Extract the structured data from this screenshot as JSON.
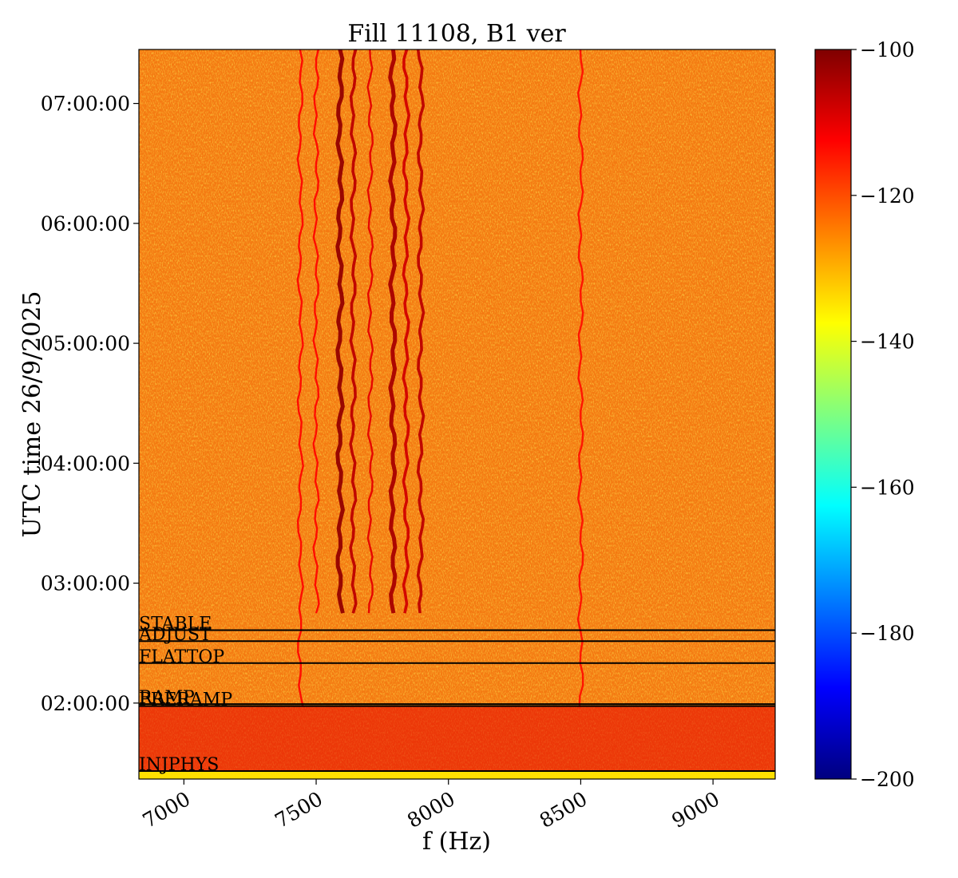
{
  "chart_data": {
    "type": "heatmap",
    "title": "Fill 11108, B1 ver",
    "xlabel": "f (Hz)",
    "ylabel": "UTC time 26/9/2025",
    "xlim": [
      6830,
      9235
    ],
    "ylim": [
      "01:22:00",
      "07:27:00"
    ],
    "x_ticks": [
      7000,
      7500,
      8000,
      8500,
      9000
    ],
    "x_tick_labels": [
      "7000",
      "7500",
      "8000",
      "8500",
      "9000"
    ],
    "y_ticks": [
      "02:00:00",
      "03:00:00",
      "04:00:00",
      "05:00:00",
      "06:00:00",
      "07:00:00"
    ],
    "colormap": "jet",
    "colorbar": {
      "range": [
        -200,
        -100
      ],
      "ticks": [
        -100,
        -120,
        -140,
        -160,
        -180,
        -200
      ],
      "tick_labels": [
        "−100",
        "−120",
        "−140",
        "−160",
        "−180",
        "−200"
      ]
    },
    "background_level_db": -123,
    "spectral_lines": [
      {
        "f_hz": 7590,
        "start": "02:45:00",
        "level_db": -102
      },
      {
        "f_hz": 7640,
        "start": "02:45:00",
        "level_db": -106
      },
      {
        "f_hz": 7705,
        "start": "02:45:00",
        "level_db": -110
      },
      {
        "f_hz": 7790,
        "start": "02:45:00",
        "level_db": -104
      },
      {
        "f_hz": 7840,
        "start": "02:45:00",
        "level_db": -108
      },
      {
        "f_hz": 7895,
        "start": "02:45:00",
        "level_db": -106
      },
      {
        "f_hz": 7440,
        "start": "01:58:00",
        "level_db": -113
      },
      {
        "f_hz": 7500,
        "start": "02:45:00",
        "level_db": -113
      },
      {
        "f_hz": 8500,
        "start": "01:58:00",
        "level_db": -114
      }
    ],
    "phases": [
      {
        "label": "STABLE",
        "time": "02:36:30"
      },
      {
        "label": "ADJUST",
        "time": "02:31:00"
      },
      {
        "label": "FLATTOP",
        "time": "02:20:00"
      },
      {
        "label": "RAMP",
        "time": "01:59:30"
      },
      {
        "label": "PRERAMP",
        "time": "01:58:30"
      },
      {
        "label": "INJPHYS",
        "time": "01:26:00"
      }
    ]
  }
}
